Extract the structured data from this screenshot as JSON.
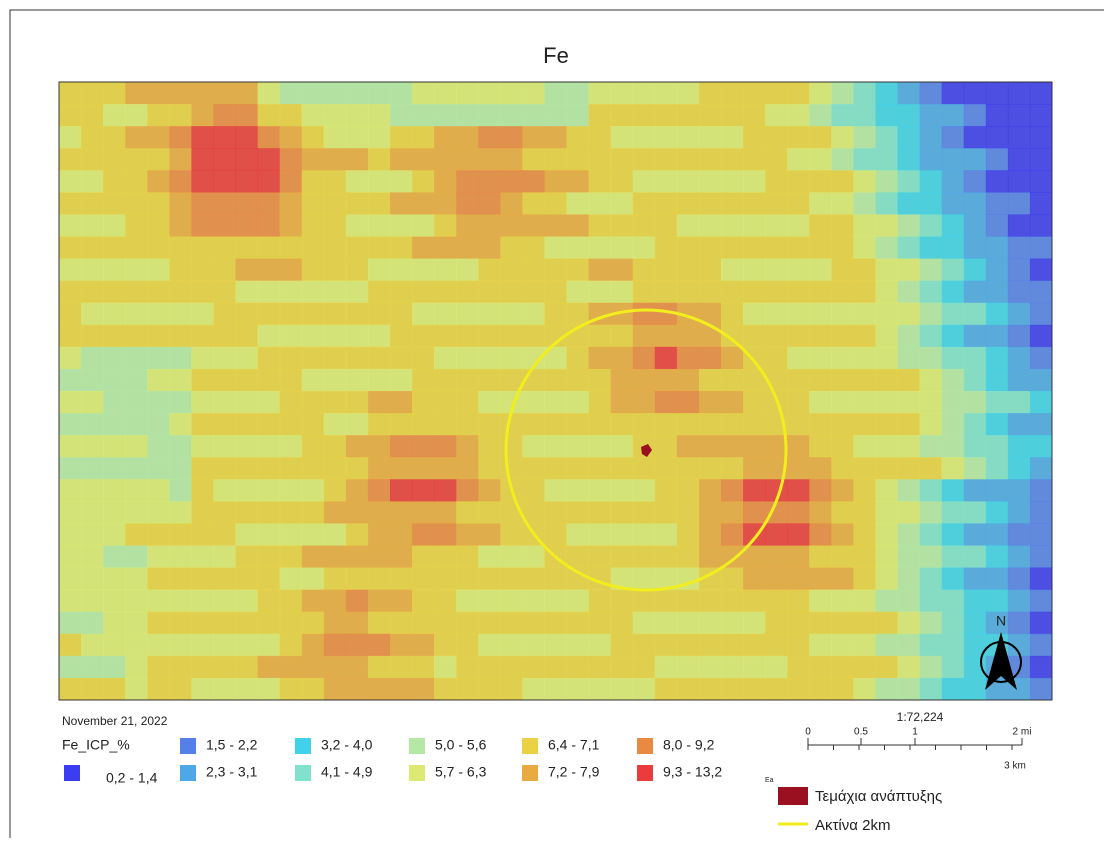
{
  "title": "Fe",
  "date": "November 21, 2022",
  "legend": {
    "title": "Fe_ICP_%",
    "items": [
      {
        "label": "0,2 - 1,4",
        "color": "#3c3cf0"
      },
      {
        "label": "1,5 - 2,2",
        "color": "#5580ea"
      },
      {
        "label": "2,3 - 3,1",
        "color": "#4ea8e8"
      },
      {
        "label": "3,2 - 4,0",
        "color": "#40d2ea"
      },
      {
        "label": "4,1 - 4,9",
        "color": "#80e2cc"
      },
      {
        "label": "5,0 - 5,6",
        "color": "#b4e8a4"
      },
      {
        "label": "5,7 - 6,3",
        "color": "#dcea74"
      },
      {
        "label": "6,4 - 7,1",
        "color": "#ead244"
      },
      {
        "label": "7,2 - 7,9",
        "color": "#eaaa42"
      },
      {
        "label": "8,0 - 9,2",
        "color": "#ea8a42"
      },
      {
        "label": "9,3 - 13,2",
        "color": "#ea3c3c"
      }
    ]
  },
  "scale": {
    "ratio": "1:72,224",
    "mi_labels": [
      "0",
      "0.5",
      "1",
      "2 mi"
    ],
    "km_label": "3 km"
  },
  "attribution": "Ea",
  "north": "N",
  "overlay": [
    {
      "label": "Τεμάχια ανάπτυξης",
      "color": "#9b1020"
    },
    {
      "label": "Ακτίνα 2km",
      "color": "#f2ee1e"
    }
  ]
}
